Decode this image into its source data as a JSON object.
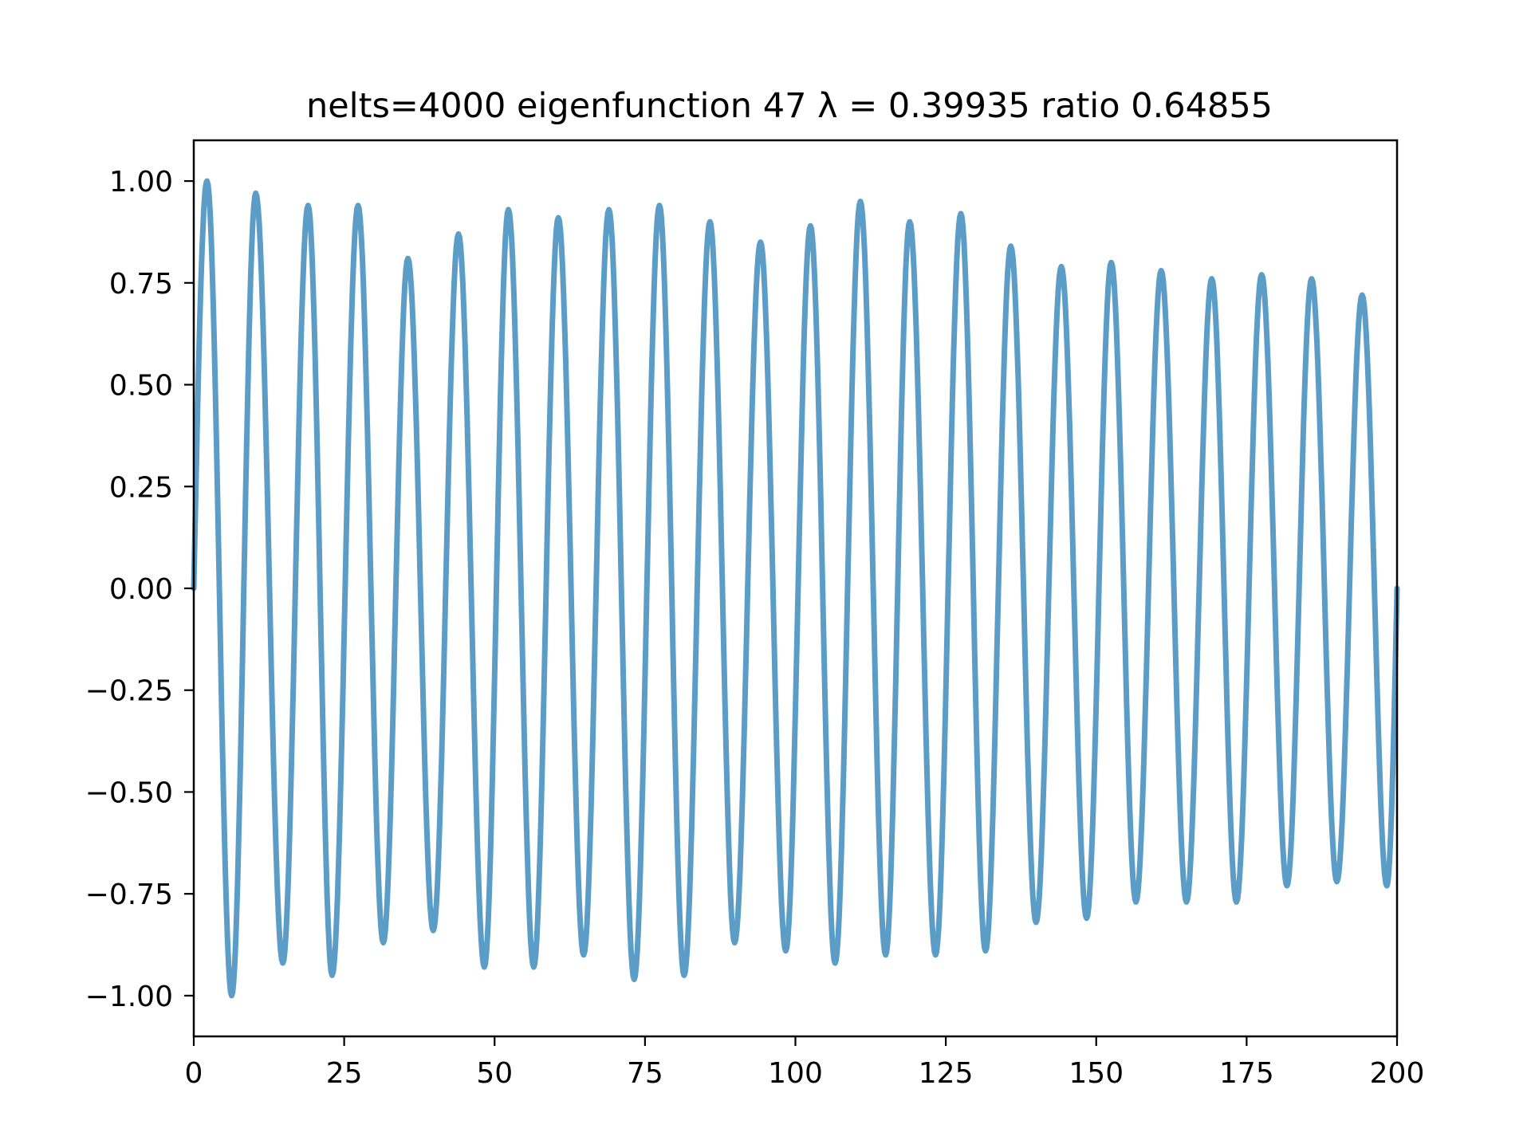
{
  "chart_data": {
    "type": "line",
    "title": "nelts=4000  eigenfunction 47  λ = 0.39935 ratio 0.64855",
    "xlabel": "",
    "ylabel": "",
    "xlim": [
      0,
      200
    ],
    "ylim": [
      -1.1,
      1.1
    ],
    "grid": false,
    "legend": "none",
    "x_ticks": [
      0,
      25,
      50,
      75,
      100,
      125,
      150,
      175,
      200
    ],
    "x_tick_labels": [
      "0",
      "25",
      "50",
      "75",
      "100",
      "125",
      "150",
      "175",
      "200"
    ],
    "y_ticks": [
      1.0,
      0.75,
      0.5,
      0.25,
      0.0,
      -0.25,
      -0.5,
      -0.75,
      -1.0
    ],
    "y_tick_labels": [
      "1.00",
      "0.75",
      "0.50",
      "0.25",
      "0.00",
      "−0.25",
      "−0.50",
      "−0.75",
      "−1.00"
    ],
    "series": [
      {
        "color": "#5b9dc6",
        "points": [
          [
            0,
            0.0
          ],
          [
            2.2,
            1.0
          ],
          [
            6.3,
            -1.0
          ],
          [
            10.3,
            0.97
          ],
          [
            14.8,
            -0.92
          ],
          [
            19.0,
            0.94
          ],
          [
            23.0,
            -0.95
          ],
          [
            27.3,
            0.94
          ],
          [
            31.5,
            -0.87
          ],
          [
            35.6,
            0.81
          ],
          [
            39.8,
            -0.84
          ],
          [
            44.0,
            0.87
          ],
          [
            48.3,
            -0.93
          ],
          [
            52.3,
            0.93
          ],
          [
            56.5,
            -0.93
          ],
          [
            60.6,
            0.91
          ],
          [
            64.8,
            -0.9
          ],
          [
            69.0,
            0.93
          ],
          [
            73.2,
            -0.96
          ],
          [
            77.4,
            0.94
          ],
          [
            81.5,
            -0.95
          ],
          [
            85.8,
            0.9
          ],
          [
            89.9,
            -0.87
          ],
          [
            94.2,
            0.85
          ],
          [
            98.4,
            -0.89
          ],
          [
            102.5,
            0.89
          ],
          [
            106.6,
            -0.92
          ],
          [
            110.8,
            0.95
          ],
          [
            115.0,
            -0.9
          ],
          [
            119.0,
            0.9
          ],
          [
            123.3,
            -0.9
          ],
          [
            127.5,
            0.92
          ],
          [
            131.6,
            -0.89
          ],
          [
            135.8,
            0.84
          ],
          [
            140.0,
            -0.82
          ],
          [
            144.2,
            0.79
          ],
          [
            148.4,
            -0.81
          ],
          [
            152.5,
            0.8
          ],
          [
            156.6,
            -0.77
          ],
          [
            160.8,
            0.78
          ],
          [
            165.0,
            -0.77
          ],
          [
            169.2,
            0.76
          ],
          [
            173.3,
            -0.77
          ],
          [
            177.5,
            0.77
          ],
          [
            181.7,
            -0.73
          ],
          [
            185.8,
            0.76
          ],
          [
            190.0,
            -0.72
          ],
          [
            194.2,
            0.72
          ],
          [
            198.3,
            -0.73
          ],
          [
            200,
            0.0
          ]
        ]
      }
    ]
  }
}
